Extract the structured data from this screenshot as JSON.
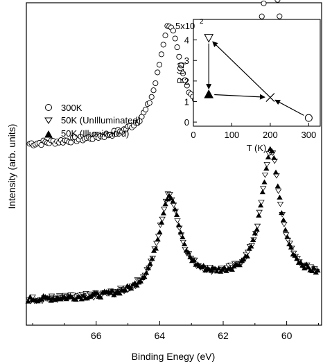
{
  "chart_data": {
    "main": {
      "type": "scatter",
      "xlabel": "Binding Enegy (eV)",
      "ylabel": "Intensity (arb. units)",
      "xlim": [
        68.2,
        58.9
      ],
      "x_reversed": true,
      "xticks": [
        66,
        64,
        62,
        60
      ],
      "y_ticks_labeled": false,
      "legend_position": "left",
      "peaks": [
        {
          "position": 63.7
        },
        {
          "position": 60.5
        }
      ],
      "series": [
        {
          "name": "300K",
          "marker": "open-circle",
          "offset": 0.52,
          "peak1_height": 0.36,
          "peak2_height": 0.52,
          "baseline_high_BE": 0.0,
          "baseline_low_BE": 0.06
        },
        {
          "name": "50K (UnIlluminated)",
          "marker": "open-down-triangle",
          "offset": 0.0,
          "peak1_height": 0.33,
          "peak2_height": 0.43,
          "baseline_high_BE": 0.0,
          "baseline_low_BE": 0.02
        },
        {
          "name": "50K (Illuminated)",
          "marker": "filled-up-triangle",
          "offset": 0.0,
          "peak1_height": 0.33,
          "peak2_height": 0.43,
          "baseline_high_BE": 0.0,
          "baseline_low_BE": 0.02
        }
      ]
    },
    "inset": {
      "type": "scatter",
      "xlabel": "T (K)",
      "ylabel": "R (Ω)",
      "ylabel_exponent_tick": "5x10",
      "ylabel_exponent_power": "2",
      "xlim": [
        0,
        330
      ],
      "ylim": [
        -0.2,
        5
      ],
      "xticks": [
        0,
        100,
        200,
        300
      ],
      "yticks": [
        0,
        1,
        2,
        3,
        4
      ],
      "points": [
        {
          "x": 300,
          "y": 0.2,
          "marker": "open-circle"
        },
        {
          "x": 200,
          "y": 1.2,
          "marker": "cross"
        },
        {
          "x": 40,
          "y": 4.1,
          "marker": "open-down-triangle"
        },
        {
          "x": 40,
          "y": 1.35,
          "marker": "filled-up-triangle"
        }
      ],
      "arrows": [
        {
          "from": [
            300,
            0.2
          ],
          "to": [
            200,
            1.2
          ]
        },
        {
          "from": [
            200,
            1.2
          ],
          "to": [
            40,
            4.1
          ]
        },
        {
          "from": [
            40,
            4.1
          ],
          "to": [
            40,
            1.35
          ]
        },
        {
          "from": [
            40,
            1.35
          ],
          "to": [
            200,
            1.2
          ]
        }
      ]
    }
  }
}
